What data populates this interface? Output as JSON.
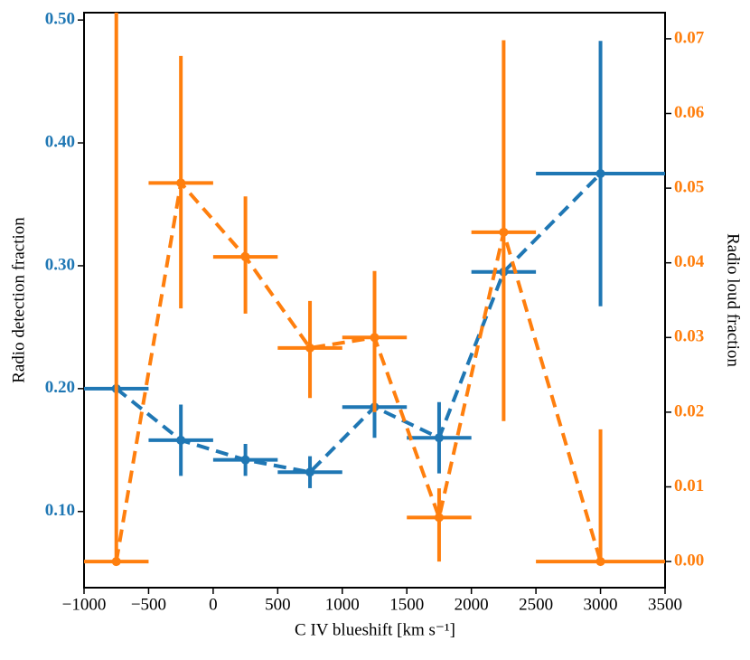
{
  "chart_data": {
    "type": "errorbar",
    "x_label": "C IV blueshift [km s⁻¹]",
    "y_label": "Radio detection fraction",
    "y2_label": "Radio loud fraction",
    "xlim": [
      -1000,
      3500
    ],
    "xticks": [
      {
        "value": -1000,
        "label": "−1000"
      },
      {
        "value": -500,
        "label": "−500"
      },
      0,
      500,
      1000,
      1500,
      2000,
      2500,
      3000,
      3500
    ],
    "ylim": [
      0.038,
      0.506
    ],
    "yticks": [
      {
        "value": 0.1,
        "label": "0.10"
      },
      {
        "value": 0.2,
        "label": "0.20"
      },
      {
        "value": 0.3,
        "label": "0.30"
      },
      {
        "value": 0.4,
        "label": "0.40"
      },
      {
        "value": 0.5,
        "label": "0.50"
      }
    ],
    "y2lim": [
      -0.0035,
      0.0735
    ],
    "y2ticks": [
      {
        "value": 0,
        "label": "0.00"
      },
      0.01,
      0.02,
      0.03,
      0.04,
      0.05,
      0.06,
      0.07
    ],
    "series": [
      {
        "name": "Radio detection fraction",
        "color": "#1f77b4",
        "axis": "y",
        "x": [
          -750,
          -250,
          250,
          750,
          1250,
          1750,
          2250,
          3000
        ],
        "values": [
          0.2,
          0.158,
          0.142,
          0.132,
          0.185,
          0.16,
          0.295,
          0.375
        ],
        "xerr": [
          250,
          250,
          250,
          250,
          250,
          250,
          250,
          500
        ],
        "yerr_low": [
          0,
          0.029,
          0.013,
          0.013,
          0.025,
          0.029,
          0,
          0.108
        ],
        "yerr_high": [
          0,
          0.029,
          0.013,
          0.013,
          0.025,
          0.029,
          0,
          0.108
        ]
      },
      {
        "name": "Radio loud fraction",
        "color": "#ff7f0e",
        "axis": "y2",
        "x": [
          -750,
          -250,
          250,
          750,
          1250,
          1750,
          2250,
          3000
        ],
        "values": [
          0,
          0.0507,
          0.0408,
          0.0286,
          0.03,
          0.0059,
          0.0441,
          0
        ],
        "xerr": [
          250,
          250,
          250,
          250,
          250,
          250,
          250,
          500
        ],
        "yerr_low": [
          0,
          0.0168,
          0.0076,
          0.0067,
          0.01,
          0.0059,
          0.0253,
          0
        ],
        "yerr_high": [
          0.08,
          0.017,
          0.0081,
          0.0063,
          0.0089,
          0.0039,
          0.0257,
          0.0177
        ]
      }
    ]
  }
}
